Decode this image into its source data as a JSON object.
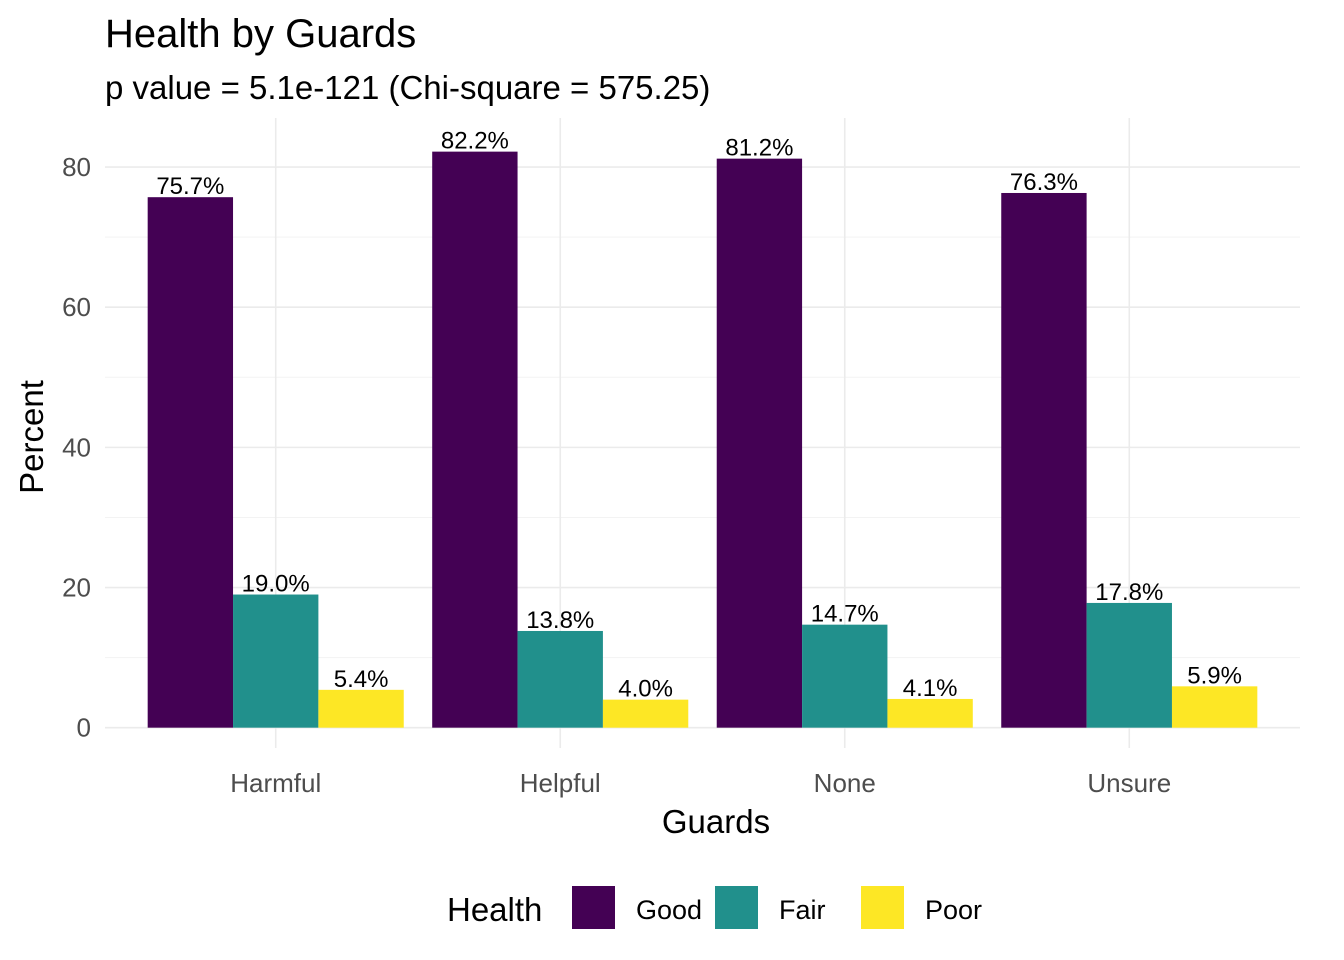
{
  "chart_data": {
    "type": "bar",
    "title": "Health by Guards",
    "subtitle": "p value = 5.1e-121 (Chi-square = 575.25)",
    "xlabel": "Guards",
    "ylabel": "Percent",
    "categories": [
      "Harmful",
      "Helpful",
      "None",
      "Unsure"
    ],
    "series": [
      {
        "name": "Good",
        "color": "#440154",
        "values": [
          75.7,
          82.2,
          81.2,
          76.3
        ],
        "labels": [
          "75.7%",
          "82.2%",
          "81.2%",
          "76.3%"
        ]
      },
      {
        "name": "Fair",
        "color": "#21908C",
        "values": [
          19.0,
          13.8,
          14.7,
          17.8
        ],
        "labels": [
          "19.0%",
          "13.8%",
          "14.7%",
          "17.8%"
        ]
      },
      {
        "name": "Poor",
        "color": "#FDE725",
        "values": [
          5.4,
          4.0,
          4.1,
          5.9
        ],
        "labels": [
          "5.4%",
          "4.0%",
          "4.1%",
          "5.9%"
        ]
      }
    ],
    "yticks": [
      0,
      20,
      40,
      60,
      80
    ],
    "ylim": [
      -2.9,
      87
    ],
    "grid": true,
    "legend": {
      "title": "Health",
      "position": "bottom"
    }
  }
}
